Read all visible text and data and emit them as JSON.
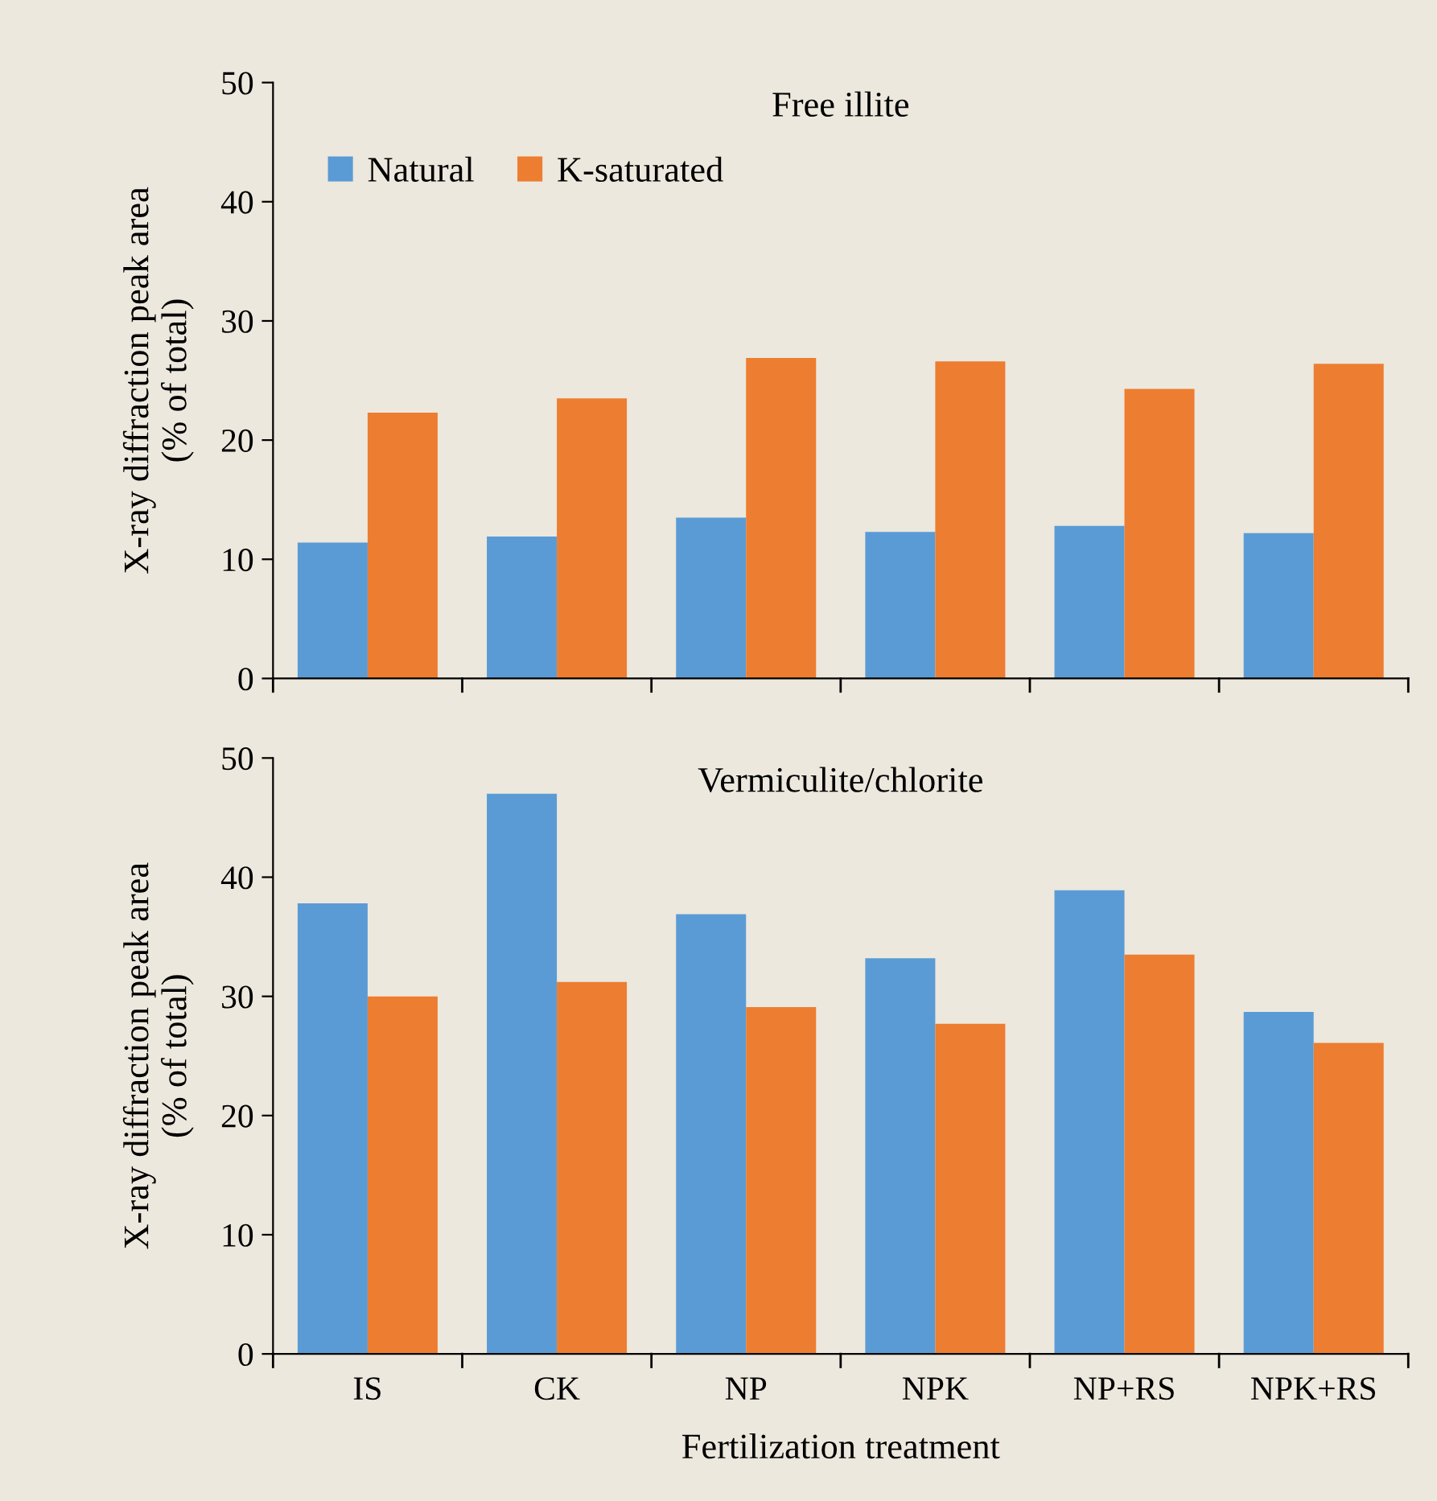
{
  "chart_data": [
    {
      "type": "bar",
      "title": "Free illite",
      "ylabel": "X-ray diffraction peak area\n(% of total)",
      "categories": [
        null,
        null,
        null,
        null,
        null,
        null
      ],
      "ylim": [
        0,
        50
      ],
      "yticks": [
        0,
        10,
        20,
        30,
        40,
        50
      ],
      "tick_labels": "y",
      "legend": "top left",
      "grid": false,
      "series": [
        {
          "name": "Natural",
          "color": "#5b9bd5",
          "values": [
            11.4,
            11.9,
            13.5,
            12.3,
            12.8,
            12.2
          ]
        },
        {
          "name": "K-saturated",
          "color": "#ed7d31",
          "values": [
            22.3,
            23.5,
            26.9,
            26.6,
            24.3,
            26.4
          ]
        }
      ]
    },
    {
      "type": "bar",
      "title": "Vermiculite/chlorite",
      "ylabel": "X-ray diffraction peak area\n(% of total)",
      "xlabel": "Fertilization treatment",
      "categories": [
        "IS",
        "CK",
        "NP",
        "NPK",
        "NP+RS",
        "NPK+RS"
      ],
      "ylim": [
        0,
        50
      ],
      "yticks": [
        0,
        10,
        20,
        30,
        40,
        50
      ],
      "grid": false,
      "series": [
        {
          "color": "#5b9bd5",
          "values": [
            37.8,
            47.0,
            36.9,
            33.2,
            38.9,
            28.7
          ]
        },
        {
          "color": "#ed7d31",
          "values": [
            30.0,
            31.2,
            29.1,
            27.7,
            33.5,
            26.1
          ]
        }
      ]
    }
  ]
}
